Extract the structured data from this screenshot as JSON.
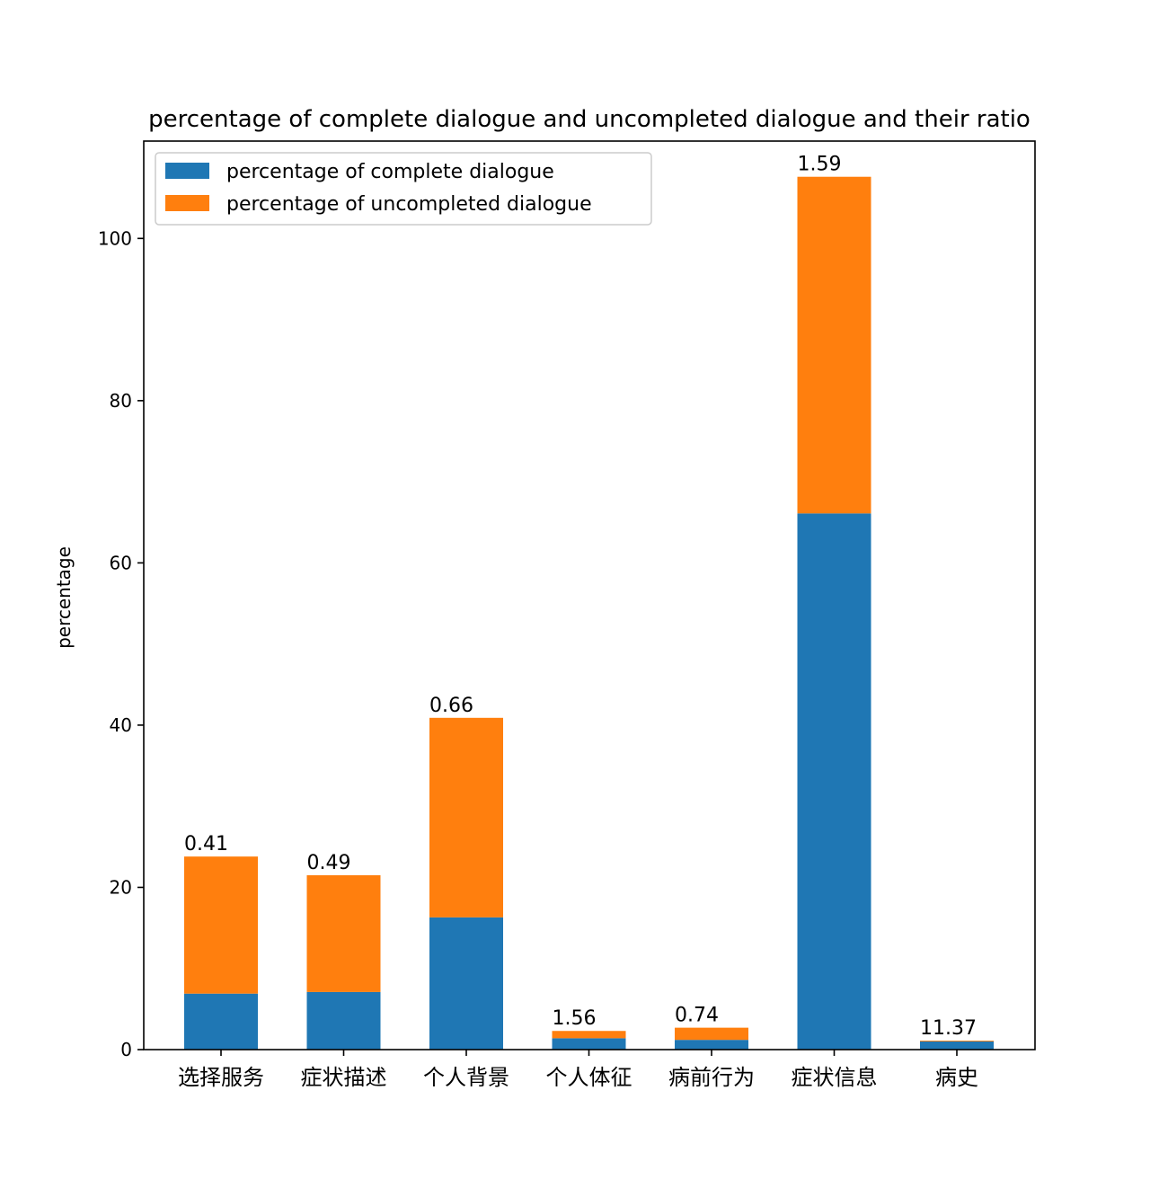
{
  "chart_data": {
    "type": "bar",
    "stacked": true,
    "title": "percentage of complete dialogue and uncompleted dialogue and their ratio",
    "xlabel": "",
    "ylabel": "percentage",
    "ylim": [
      0,
      112
    ],
    "yticks": [
      0,
      20,
      40,
      60,
      80,
      100
    ],
    "categories": [
      "选择服务",
      "症状描述",
      "个人背景",
      "个人体征",
      "病前行为",
      "症状信息",
      "病史"
    ],
    "series": [
      {
        "name": "percentage of complete dialogue",
        "color": "#1f77b4",
        "values": [
          6.9,
          7.1,
          16.3,
          1.4,
          1.2,
          66.1,
          1.0
        ]
      },
      {
        "name": "percentage of uncompleted dialogue",
        "color": "#ff7f0e",
        "values": [
          16.9,
          14.4,
          24.6,
          0.9,
          1.5,
          41.5,
          0.1
        ]
      }
    ],
    "bar_labels": [
      "0.41",
      "0.49",
      "0.66",
      "1.56",
      "0.74",
      "1.59",
      "11.37"
    ],
    "grid": false,
    "legend_position": "top-left"
  }
}
